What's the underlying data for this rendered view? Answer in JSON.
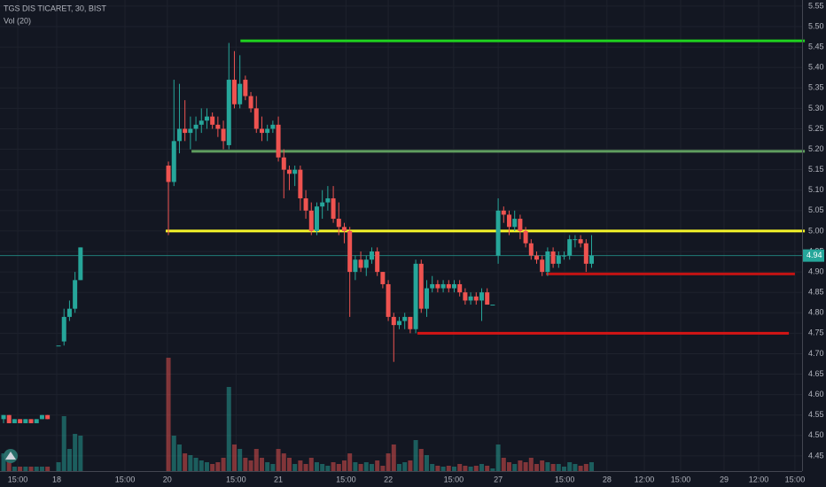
{
  "chart_data": {
    "type": "candlestick",
    "title": "TGS DIS TICARET, 30, BIST",
    "subtitle": "Vol (20)",
    "up_color": "#26a69a",
    "down_color": "#ef5350",
    "grid": true,
    "x": [
      0,
      1,
      2,
      3,
      4,
      5,
      6,
      7,
      8,
      10,
      11,
      12,
      13,
      14,
      30,
      31,
      32,
      33,
      34,
      35,
      36,
      37,
      38,
      39,
      40,
      41,
      42,
      43,
      44,
      45,
      46,
      47,
      48,
      49,
      50,
      51,
      52,
      53,
      54,
      55,
      56,
      57,
      58,
      59,
      60,
      61,
      62,
      63,
      64,
      65,
      66,
      67,
      68,
      69,
      70,
      71,
      72,
      73,
      74,
      75,
      76,
      77,
      78,
      79,
      80,
      81,
      82,
      83,
      84,
      85,
      86,
      87,
      88,
      89,
      90,
      91,
      92,
      93,
      94,
      95,
      96,
      97,
      98,
      99,
      100,
      101,
      102,
      103,
      104,
      105,
      106,
      107
    ],
    "ohlc": [
      [
        4.54,
        4.55,
        4.53,
        4.55
      ],
      [
        4.55,
        4.55,
        4.53,
        4.53
      ],
      [
        4.53,
        4.54,
        4.53,
        4.54
      ],
      [
        4.54,
        4.54,
        4.53,
        4.53
      ],
      [
        4.53,
        4.54,
        4.53,
        4.54
      ],
      [
        4.54,
        4.54,
        4.53,
        4.53
      ],
      [
        4.53,
        4.54,
        4.53,
        4.54
      ],
      [
        4.54,
        4.55,
        4.54,
        4.55
      ],
      [
        4.55,
        4.55,
        4.54,
        4.54
      ],
      [
        4.72,
        4.72,
        4.72,
        4.72
      ],
      [
        4.73,
        4.81,
        4.72,
        4.79
      ],
      [
        4.79,
        4.83,
        4.78,
        4.81
      ],
      [
        4.81,
        4.9,
        4.8,
        4.88
      ],
      [
        4.88,
        4.96,
        4.88,
        4.96
      ],
      [
        5.16,
        5.17,
        4.99,
        5.12
      ],
      [
        5.12,
        5.37,
        5.11,
        5.22
      ],
      [
        5.22,
        5.36,
        5.19,
        5.25
      ],
      [
        5.25,
        5.32,
        5.22,
        5.24
      ],
      [
        5.24,
        5.28,
        5.2,
        5.25
      ],
      [
        5.25,
        5.28,
        5.22,
        5.26
      ],
      [
        5.26,
        5.3,
        5.24,
        5.27
      ],
      [
        5.27,
        5.3,
        5.25,
        5.28
      ],
      [
        5.28,
        5.29,
        5.25,
        5.26
      ],
      [
        5.26,
        5.28,
        5.23,
        5.25
      ],
      [
        5.25,
        5.27,
        5.2,
        5.22
      ],
      [
        5.21,
        5.46,
        5.2,
        5.37
      ],
      [
        5.37,
        5.44,
        5.3,
        5.31
      ],
      [
        5.31,
        5.43,
        5.3,
        5.36
      ],
      [
        5.37,
        5.38,
        5.32,
        5.33
      ],
      [
        5.33,
        5.34,
        5.29,
        5.3
      ],
      [
        5.3,
        5.33,
        5.24,
        5.25
      ],
      [
        5.25,
        5.28,
        5.22,
        5.24
      ],
      [
        5.24,
        5.26,
        5.22,
        5.25
      ],
      [
        5.25,
        5.27,
        5.24,
        5.26
      ],
      [
        5.26,
        5.28,
        5.17,
        5.18
      ],
      [
        5.18,
        5.2,
        5.08,
        5.15
      ],
      [
        5.15,
        5.16,
        5.1,
        5.14
      ],
      [
        5.14,
        5.16,
        5.11,
        5.15
      ],
      [
        5.15,
        5.16,
        5.05,
        5.08
      ],
      [
        5.08,
        5.1,
        5.03,
        5.05
      ],
      [
        5.05,
        5.07,
        4.99,
        5.0
      ],
      [
        5.0,
        5.07,
        4.99,
        5.06
      ],
      [
        5.06,
        5.1,
        5.03,
        5.07
      ],
      [
        5.07,
        5.11,
        5.05,
        5.08
      ],
      [
        5.08,
        5.11,
        5.02,
        5.03
      ],
      [
        5.03,
        5.07,
        4.99,
        5.01
      ],
      [
        5.01,
        5.02,
        4.97,
        5.0
      ],
      [
        5.0,
        5.01,
        4.79,
        4.9
      ],
      [
        4.9,
        4.94,
        4.88,
        4.93
      ],
      [
        4.93,
        4.95,
        4.9,
        4.91
      ],
      [
        4.91,
        4.94,
        4.89,
        4.93
      ],
      [
        4.93,
        4.96,
        4.92,
        4.95
      ],
      [
        4.95,
        4.96,
        4.89,
        4.9
      ],
      [
        4.9,
        4.9,
        4.86,
        4.87
      ],
      [
        4.87,
        4.88,
        4.78,
        4.79
      ],
      [
        4.79,
        4.8,
        4.68,
        4.77
      ],
      [
        4.77,
        4.79,
        4.76,
        4.78
      ],
      [
        4.78,
        4.8,
        4.76,
        4.79
      ],
      [
        4.79,
        4.79,
        4.75,
        4.76
      ],
      [
        4.76,
        4.93,
        4.75,
        4.92
      ],
      [
        4.92,
        4.93,
        4.8,
        4.81
      ],
      [
        4.81,
        4.88,
        4.79,
        4.86
      ],
      [
        4.86,
        4.89,
        4.85,
        4.87
      ],
      [
        4.87,
        4.88,
        4.85,
        4.86
      ],
      [
        4.86,
        4.88,
        4.85,
        4.87
      ],
      [
        4.87,
        4.88,
        4.85,
        4.86
      ],
      [
        4.86,
        4.88,
        4.85,
        4.87
      ],
      [
        4.87,
        4.88,
        4.84,
        4.85
      ],
      [
        4.85,
        4.86,
        4.82,
        4.83
      ],
      [
        4.83,
        4.85,
        4.82,
        4.84
      ],
      [
        4.84,
        4.85,
        4.82,
        4.83
      ],
      [
        4.83,
        4.86,
        4.78,
        4.85
      ],
      [
        4.85,
        4.86,
        4.82,
        4.82
      ],
      [
        4.82,
        4.82,
        4.82,
        4.82
      ],
      [
        4.94,
        5.08,
        4.92,
        5.05
      ],
      [
        5.05,
        5.06,
        5.02,
        5.04
      ],
      [
        5.04,
        5.05,
        4.99,
        5.01
      ],
      [
        5.01,
        5.05,
        5.0,
        5.03
      ],
      [
        5.03,
        5.04,
        4.98,
        5.0
      ],
      [
        5.0,
        5.01,
        4.96,
        4.97
      ],
      [
        4.97,
        4.98,
        4.93,
        4.94
      ],
      [
        4.94,
        4.95,
        4.92,
        4.93
      ],
      [
        4.93,
        4.94,
        4.89,
        4.9
      ],
      [
        4.9,
        4.96,
        4.89,
        4.95
      ],
      [
        4.95,
        4.96,
        4.91,
        4.92
      ],
      [
        4.92,
        4.95,
        4.91,
        4.94
      ],
      [
        4.94,
        4.95,
        4.93,
        4.94
      ],
      [
        4.94,
        4.99,
        4.93,
        4.98
      ],
      [
        4.98,
        4.99,
        4.96,
        4.98
      ],
      [
        4.98,
        4.99,
        4.96,
        4.97
      ],
      [
        4.97,
        4.98,
        4.9,
        4.92
      ],
      [
        4.92,
        4.99,
        4.91,
        4.94
      ]
    ],
    "volume": [
      20,
      10,
      5,
      5,
      5,
      5,
      5,
      5,
      5,
      10,
      62,
      25,
      42,
      40,
      128,
      40,
      30,
      20,
      18,
      15,
      12,
      10,
      8,
      10,
      15,
      95,
      30,
      25,
      15,
      12,
      25,
      15,
      10,
      8,
      25,
      20,
      15,
      8,
      12,
      8,
      15,
      10,
      8,
      6,
      10,
      8,
      12,
      20,
      10,
      8,
      10,
      8,
      12,
      6,
      20,
      30,
      8,
      10,
      12,
      35,
      25,
      18,
      8,
      6,
      5,
      6,
      5,
      8,
      6,
      5,
      6,
      8,
      6,
      3,
      30,
      15,
      10,
      8,
      12,
      10,
      15,
      8,
      12,
      10,
      8,
      8,
      5,
      10,
      8,
      6,
      8,
      10
    ],
    "volume_lim": [
      0,
      140
    ],
    "xlim": [
      -0.65,
      145.3
    ],
    "ylim": [
      4.413,
      5.565
    ],
    "xticks": [
      {
        "value": 2.58,
        "label": "15:00"
      },
      {
        "value": 9.67,
        "label": "18"
      },
      {
        "value": 22.1,
        "label": "15:00"
      },
      {
        "value": 29.8,
        "label": "20"
      },
      {
        "value": 42.3,
        "label": "15:00"
      },
      {
        "value": 50.0,
        "label": "21"
      },
      {
        "value": 62.3,
        "label": "15:00"
      },
      {
        "value": 70.0,
        "label": "22"
      },
      {
        "value": 81.9,
        "label": "15:00"
      },
      {
        "value": 90.0,
        "label": "27"
      },
      {
        "value": 102.1,
        "label": "15:00"
      },
      {
        "value": 109.8,
        "label": "28"
      },
      {
        "value": 116.6,
        "label": "12:00"
      },
      {
        "value": 123.2,
        "label": "15:00"
      },
      {
        "value": 131.1,
        "label": "29"
      },
      {
        "value": 137.4,
        "label": "12:00"
      },
      {
        "value": 144.0,
        "label": "15:00"
      }
    ],
    "yticks": [
      5.55,
      {
        "value": 5.5,
        "label": "5.50"
      },
      5.45,
      {
        "value": 5.4,
        "label": "5.40"
      },
      5.35,
      {
        "value": 5.3,
        "label": "5.30"
      },
      5.25,
      {
        "value": 5.2,
        "label": "5.20"
      },
      5.15,
      {
        "value": 5.1,
        "label": "5.10"
      },
      5.05,
      {
        "value": 5,
        "label": "5.00"
      },
      4.95,
      {
        "value": 4.9,
        "label": "4.90"
      },
      4.85,
      {
        "value": 4.8,
        "label": "4.80"
      },
      4.75,
      {
        "value": 4.7,
        "label": "4.70"
      },
      4.65,
      {
        "value": 4.6,
        "label": "4.60"
      },
      4.55,
      {
        "value": 4.5,
        "label": "4.50"
      },
      4.45
    ],
    "levels": [
      {
        "value": 5.465,
        "color": "#1fd21f",
        "start": 43.1,
        "end": 145.8
      },
      {
        "value": 5.195,
        "color": "#5f9e5f",
        "start": 34.2,
        "end": 145.8
      },
      {
        "value": 5.0,
        "color": "#f5f52a",
        "start": 29.5,
        "end": 145.8
      },
      {
        "value": 4.895,
        "color": "#c21313",
        "start": 98.7,
        "end": 144.0
      },
      {
        "value": 4.75,
        "color": "#d41515",
        "start": 75.3,
        "end": 142.9
      }
    ],
    "last_price": 4.94
  }
}
